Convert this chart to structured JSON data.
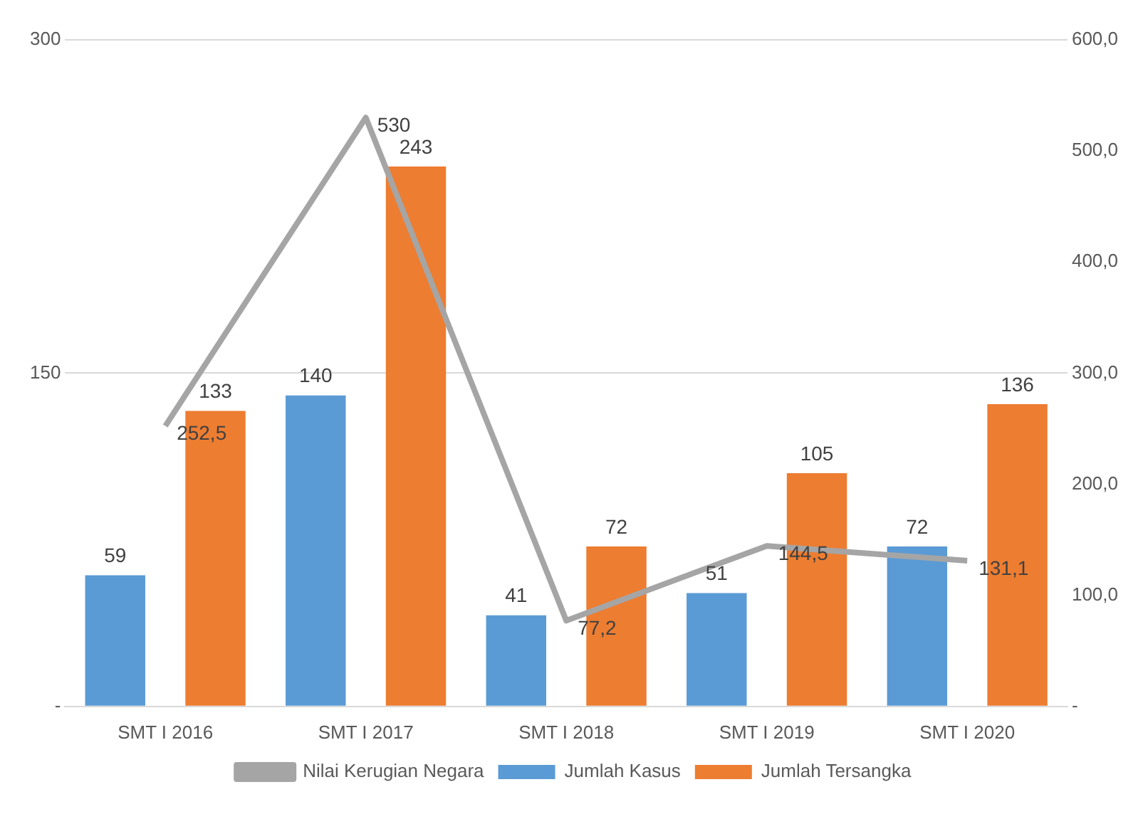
{
  "chart_data": {
    "type": "bar",
    "categories": [
      "SMT I 2016",
      "SMT I 2017",
      "SMT I 2018",
      "SMT I 2019",
      "SMT I 2020"
    ],
    "series": [
      {
        "name": "Jumlah Kasus",
        "color": "#5b9bd5",
        "values": [
          59,
          140,
          41,
          51,
          72
        ],
        "value_labels": [
          "59",
          "140",
          "41",
          "51",
          "72"
        ]
      },
      {
        "name": "Jumlah Tersangka",
        "color": "#ed7d31",
        "values": [
          133,
          243,
          72,
          105,
          136
        ],
        "value_labels": [
          "133",
          "243",
          "72",
          "105",
          "136"
        ]
      },
      {
        "name": "Nilai Kerugian Negara",
        "type": "line",
        "axis": "y2",
        "color": "#a5a5a5",
        "values": [
          252.5,
          530,
          77.2,
          144.5,
          131.1
        ],
        "value_labels": [
          "252,5",
          "530",
          "77,2",
          "144,5",
          "131,1"
        ]
      }
    ],
    "ylim": [
      0,
      300
    ],
    "yticks": [
      {
        "value": 0,
        "label": "-"
      },
      150,
      300
    ],
    "y2lim": [
      0,
      600
    ],
    "y2ticks": [
      {
        "value": 0,
        "label": "-"
      },
      {
        "value": 100,
        "label": "100,0"
      },
      {
        "value": 200,
        "label": "200,0"
      },
      {
        "value": 300,
        "label": "300,0"
      },
      {
        "value": 400,
        "label": "400,0"
      },
      {
        "value": 500,
        "label": "500,0"
      },
      {
        "value": 600,
        "label": "600,0"
      }
    ],
    "grid": "y",
    "legend": "bottom",
    "marker": "none",
    "line_style": "solid"
  }
}
